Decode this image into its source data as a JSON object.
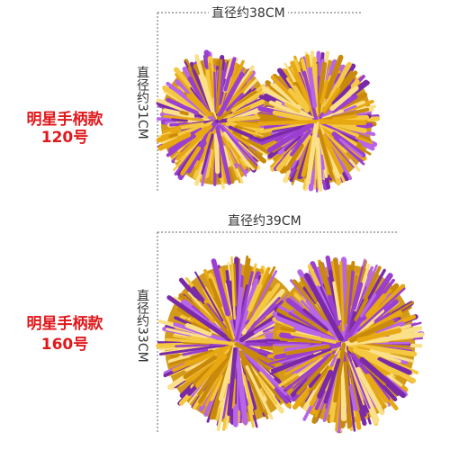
{
  "sections": [
    {
      "label_line1": "明星手柄款",
      "label_line2": "120号",
      "width_text": "直径约38CM",
      "height_text": "直径约31CM"
    },
    {
      "label_line1": "明星手柄款",
      "label_line2": "160号",
      "width_text": "直径约39CM",
      "height_text": "直径约33CM"
    }
  ]
}
